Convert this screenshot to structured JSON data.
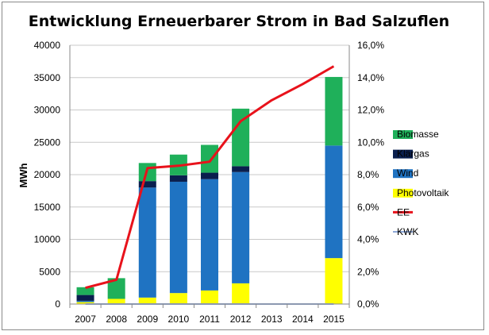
{
  "chart_data": {
    "type": "bar",
    "title": "Entwicklung Erneuerbarer Strom in Bad Salzuflen",
    "ylabel": "MWh",
    "ylim": [
      0,
      40000
    ],
    "y_ticks": [
      "0",
      "5000",
      "10000",
      "15000",
      "20000",
      "25000",
      "30000",
      "35000",
      "40000"
    ],
    "y2lim": [
      0,
      0.16
    ],
    "y2_ticks": [
      "0,0%",
      "2,0%",
      "4,0%",
      "6,0%",
      "8,0%",
      "10,0%",
      "12,0%",
      "14,0%",
      "16,0%"
    ],
    "categories": [
      "2007",
      "2008",
      "2009",
      "2010",
      "2011",
      "2012",
      "2013",
      "2014",
      "2015"
    ],
    "grid": true,
    "legend_position": "right",
    "stacked_series": [
      {
        "name": "Photovoltaik",
        "color": "#ffff00",
        "values": [
          300,
          800,
          1000,
          1700,
          2100,
          3200,
          0,
          0,
          7100
        ]
      },
      {
        "name": "Wind",
        "color": "#1f73c2",
        "values": [
          200,
          0,
          17000,
          17200,
          17200,
          17200,
          0,
          0,
          17400
        ]
      },
      {
        "name": "Klärgas",
        "color": "#0a1f4e",
        "values": [
          900,
          0,
          1000,
          1000,
          1000,
          900,
          0,
          0,
          0
        ]
      },
      {
        "name": "Biomasse",
        "color": "#1fb05a",
        "values": [
          1200,
          3200,
          2800,
          3200,
          4300,
          8900,
          0,
          0,
          10600
        ]
      }
    ],
    "line_series": [
      {
        "name": "EE",
        "color": "#e8121b",
        "axis": "right",
        "values": [
          0.01,
          0.015,
          0.084,
          0.0855,
          0.088,
          0.113,
          0.126,
          0.136,
          0.147
        ]
      },
      {
        "name": "KWK",
        "color": "#8ea8d8",
        "axis": "right",
        "values": [
          0,
          0,
          0,
          0,
          0,
          0,
          0,
          0,
          0
        ]
      }
    ],
    "legend": [
      {
        "name": "Biomasse",
        "kind": "box",
        "color": "#1fb05a"
      },
      {
        "name": "Klärgas",
        "kind": "box",
        "color": "#0a1f4e"
      },
      {
        "name": "Wind",
        "kind": "box",
        "color": "#1f73c2"
      },
      {
        "name": "Photovoltaik",
        "kind": "box",
        "color": "#ffff00"
      },
      {
        "name": "EE",
        "kind": "line",
        "color": "#e8121b"
      },
      {
        "name": "KWK",
        "kind": "line",
        "color": "#8ea8d8"
      }
    ]
  }
}
